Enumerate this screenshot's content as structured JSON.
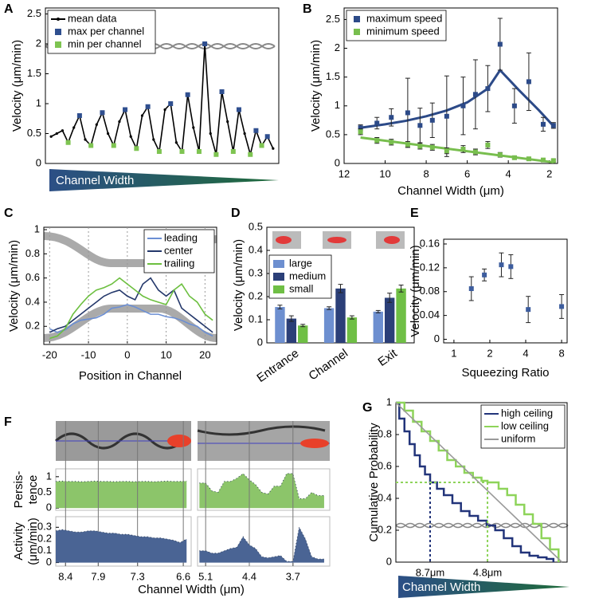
{
  "chart_data": [
    {
      "panel": "A",
      "type": "line",
      "ylabel": "Velocity (μm/min)",
      "footer": "Channel Width",
      "xlim": [
        0,
        41
      ],
      "ylim": [
        0,
        2.6
      ],
      "yticks": [
        0,
        0.5,
        1,
        1.5,
        2,
        2.5
      ],
      "legend": "upper left",
      "series": [
        {
          "name": "mean data",
          "color": "#000000",
          "marker": "dot",
          "x": [
            1,
            2,
            3,
            4,
            5,
            6,
            7,
            8,
            9,
            10,
            11,
            12,
            13,
            14,
            15,
            16,
            17,
            18,
            19,
            20,
            21,
            22,
            23,
            24,
            25,
            26,
            27,
            28,
            29,
            30,
            31,
            32,
            33,
            34,
            35,
            36,
            37,
            38,
            39,
            40
          ],
          "values": [
            0.45,
            0.5,
            0.55,
            0.35,
            0.6,
            0.8,
            0.4,
            0.3,
            0.65,
            0.85,
            0.5,
            0.3,
            0.7,
            0.9,
            0.45,
            0.25,
            0.8,
            0.95,
            0.4,
            0.2,
            0.9,
            1.0,
            0.35,
            0.2,
            1.15,
            0.6,
            0.2,
            2.0,
            0.5,
            0.15,
            1.2,
            0.7,
            0.2,
            0.9,
            0.5,
            0.15,
            0.55,
            0.3,
            0.45,
            0.25
          ]
        },
        {
          "name": "max per channel",
          "color": "#2f4f8f",
          "marker": "square",
          "line": false,
          "x": [
            6,
            10,
            14,
            18,
            22,
            25,
            28,
            31,
            34,
            37,
            39
          ],
          "values": [
            0.8,
            0.85,
            0.9,
            0.95,
            1.0,
            1.15,
            2.0,
            1.2,
            0.9,
            0.55,
            0.45
          ]
        },
        {
          "name": "min per channel",
          "color": "#7ec451",
          "marker": "square",
          "line": false,
          "x": [
            4,
            8,
            12,
            16,
            20,
            24,
            27,
            30,
            33,
            36,
            38
          ],
          "values": [
            0.35,
            0.3,
            0.3,
            0.25,
            0.2,
            0.2,
            0.2,
            0.15,
            0.2,
            0.15,
            0.3
          ]
        }
      ]
    },
    {
      "panel": "B",
      "type": "scatter",
      "xlabel": "Channel Width (μm)",
      "ylabel": "Velocity (μm/min)",
      "xlim": [
        12,
        1.6
      ],
      "xticks": [
        12,
        10,
        8,
        6,
        4,
        2
      ],
      "ylim": [
        0,
        2.7
      ],
      "yticks": [
        0,
        0.5,
        1,
        1.5,
        2,
        2.5
      ],
      "legend": "upper left",
      "series": [
        {
          "name": "maximum speed",
          "color": "#2c4a88",
          "x": [
            11.2,
            10.4,
            9.7,
            8.9,
            8.3,
            7.7,
            7.0,
            6.2,
            5.6,
            5.0,
            4.4,
            3.7,
            3.0,
            2.3,
            1.8
          ],
          "values": [
            0.62,
            0.7,
            0.8,
            0.88,
            0.66,
            0.75,
            0.82,
            1.0,
            1.2,
            1.3,
            2.07,
            1.0,
            1.42,
            0.68,
            0.66
          ],
          "errors": [
            0.05,
            0.1,
            0.15,
            0.6,
            0.3,
            0.3,
            0.7,
            0.5,
            0.6,
            0.4,
            0.45,
            0.3,
            0.5,
            0.12,
            0.05
          ],
          "fit_x": [
            11.2,
            10,
            9,
            8,
            7,
            6,
            5,
            4.4,
            3.5,
            2.5,
            1.8
          ],
          "fit_values": [
            0.62,
            0.68,
            0.74,
            0.82,
            0.92,
            1.06,
            1.3,
            1.62,
            1.28,
            0.92,
            0.65
          ]
        },
        {
          "name": "minimum speed",
          "color": "#78be4e",
          "x": [
            11.2,
            10.4,
            9.7,
            8.9,
            8.3,
            7.7,
            7.0,
            6.2,
            5.6,
            5.0,
            4.4,
            3.7,
            3.0,
            2.3,
            1.8
          ],
          "values": [
            0.55,
            0.4,
            0.37,
            0.33,
            0.3,
            0.28,
            0.22,
            0.25,
            0.2,
            0.32,
            0.15,
            0.1,
            0.08,
            0.06,
            0.05
          ],
          "errors": [
            0.05,
            0.05,
            0.05,
            0.05,
            0.05,
            0.05,
            0.05,
            0.06,
            0.05,
            0.06,
            0.04,
            0.03,
            0.03,
            0.02,
            0.02
          ],
          "fit_x": [
            11.2,
            1.8
          ],
          "fit_values": [
            0.45,
            0.02
          ]
        }
      ]
    },
    {
      "panel": "C",
      "type": "line",
      "xlabel": "Position in Channel",
      "ylabel": "Velocity (μm/min)",
      "xlim": [
        -21.5,
        23
      ],
      "xticks": [
        -20,
        -10,
        0,
        10,
        20
      ],
      "ylim": [
        0.05,
        1.02
      ],
      "yticks": [
        0.2,
        0.4,
        0.6,
        0.8,
        1
      ],
      "xgrid": true,
      "legend": "upper right",
      "x": [
        -20,
        -18,
        -16,
        -14,
        -12,
        -10,
        -8,
        -6,
        -4,
        -2,
        0,
        2,
        4,
        6,
        8,
        10,
        12,
        14,
        16,
        18,
        20,
        22
      ],
      "series": [
        {
          "name": "leading",
          "color": "#6b8fd4",
          "values": [
            0.18,
            0.15,
            0.17,
            0.22,
            0.25,
            0.26,
            0.27,
            0.3,
            0.35,
            0.36,
            0.38,
            0.36,
            0.33,
            0.3,
            0.3,
            0.28,
            0.27,
            0.25,
            0.22,
            0.2,
            0.15,
            0.12
          ]
        },
        {
          "name": "center",
          "color": "#24386b",
          "values": [
            0.15,
            0.18,
            0.2,
            0.25,
            0.3,
            0.35,
            0.4,
            0.45,
            0.48,
            0.5,
            0.45,
            0.42,
            0.55,
            0.6,
            0.5,
            0.45,
            0.5,
            0.35,
            0.3,
            0.25,
            0.2,
            0.15
          ]
        },
        {
          "name": "trailing",
          "color": "#6cbf3f",
          "values": [
            0.1,
            0.12,
            0.18,
            0.3,
            0.38,
            0.45,
            0.5,
            0.52,
            0.55,
            0.6,
            0.55,
            0.5,
            0.45,
            0.42,
            0.4,
            0.38,
            0.5,
            0.55,
            0.45,
            0.4,
            0.3,
            0.25
          ]
        }
      ]
    },
    {
      "panel": "D",
      "type": "bar",
      "ylabel": "Velocity (μm/min)",
      "categories": [
        "Entrance",
        "Channel",
        "Exit"
      ],
      "ylim": [
        0,
        0.5
      ],
      "yticks": [
        0,
        0.1,
        0.2,
        0.3,
        0.4,
        0.5
      ],
      "legend": "upper left",
      "series": [
        {
          "name": "large",
          "color": "#6d8fd0",
          "values": [
            0.155,
            0.15,
            0.135
          ],
          "errors": [
            0.008,
            0.006,
            0.005
          ]
        },
        {
          "name": "medium",
          "color": "#2b3f78",
          "values": [
            0.105,
            0.235,
            0.195
          ],
          "errors": [
            0.012,
            0.018,
            0.02
          ]
        },
        {
          "name": "small",
          "color": "#6fbf45",
          "values": [
            0.075,
            0.11,
            0.235
          ],
          "errors": [
            0.005,
            0.007,
            0.015
          ]
        }
      ]
    },
    {
      "panel": "E",
      "type": "scatter",
      "xlabel": "Squeezing Ratio",
      "ylabel": "Velocity (μm/min)",
      "xlog": true,
      "xlim": [
        0.82,
        8.9
      ],
      "xticks": [
        1,
        2,
        4,
        8
      ],
      "ylim": [
        -0.006,
        0.168
      ],
      "yticks": [
        0,
        0.04,
        0.08,
        0.12,
        0.16
      ],
      "series": [
        {
          "color": "#3d5d9e",
          "x": [
            1.4,
            1.8,
            2.5,
            3,
            4.2,
            8
          ],
          "values": [
            0.085,
            0.108,
            0.125,
            0.122,
            0.05,
            0.055
          ],
          "errors": [
            0.02,
            0.01,
            0.02,
            0.02,
            0.022,
            0.02
          ]
        }
      ]
    },
    {
      "panel": "F",
      "type": "area",
      "ylabel": [
        "Persis-",
        "tence"
      ],
      "xlim": [
        8.55,
        6.48
      ],
      "ylim": [
        -0.07,
        1.25
      ],
      "yticks": [
        0,
        0.5,
        1
      ],
      "series": [
        {
          "color": "#8cc56a",
          "x": [
            8.55,
            8.45,
            8.35,
            8.25,
            8.15,
            8.05,
            7.95,
            7.85,
            7.75,
            7.65,
            7.55,
            7.45,
            7.35,
            7.25,
            7.15,
            7.05,
            6.95,
            6.85,
            6.75,
            6.65,
            6.55
          ],
          "values": [
            0.85,
            0.86,
            0.85,
            0.85,
            0.84,
            0.85,
            0.86,
            0.85,
            0.85,
            0.84,
            0.85,
            0.85,
            0.84,
            0.85,
            0.85,
            0.84,
            0.85,
            0.86,
            0.85,
            0.85,
            0.86
          ]
        }
      ]
    },
    {
      "type": "area",
      "ylabel": [
        "Activity",
        "(μm/min)"
      ],
      "xlabel": "Channel Width (μm)",
      "xlim": [
        8.55,
        6.48
      ],
      "xticks": [
        8.4,
        7.9,
        7.3,
        6.6
      ],
      "xgrid": true,
      "ylim": [
        -0.03,
        0.39
      ],
      "yticks": [
        0,
        0.1,
        0.2,
        0.3
      ],
      "series": [
        {
          "color": "#4a6494",
          "x": [
            8.55,
            8.45,
            8.35,
            8.25,
            8.15,
            8.05,
            7.95,
            7.85,
            7.75,
            7.65,
            7.55,
            7.45,
            7.35,
            7.25,
            7.15,
            7.05,
            6.95,
            6.85,
            6.75,
            6.65,
            6.55
          ],
          "values": [
            0.27,
            0.28,
            0.27,
            0.26,
            0.26,
            0.27,
            0.27,
            0.26,
            0.25,
            0.25,
            0.24,
            0.24,
            0.23,
            0.22,
            0.22,
            0.21,
            0.21,
            0.2,
            0.19,
            0.17,
            0.2
          ]
        }
      ]
    },
    {
      "type": "area",
      "xlim": [
        5.23,
        3.11
      ],
      "ylim": [
        -0.07,
        1.25
      ],
      "series": [
        {
          "color": "#8cc56a",
          "x": [
            5.2,
            5.1,
            5.0,
            4.9,
            4.8,
            4.7,
            4.6,
            4.5,
            4.4,
            4.3,
            4.2,
            4.1,
            4.0,
            3.9,
            3.8,
            3.7,
            3.6,
            3.5,
            3.4,
            3.3,
            3.2
          ],
          "values": [
            0.8,
            0.8,
            0.55,
            0.5,
            0.85,
            0.85,
            0.95,
            1.1,
            0.9,
            0.75,
            0.5,
            0.45,
            0.7,
            0.7,
            1.1,
            1.1,
            0.3,
            0.3,
            0.5,
            0.4,
            0.4
          ]
        }
      ]
    },
    {
      "type": "area",
      "xlim": [
        5.23,
        3.11
      ],
      "xticks": [
        5.1,
        4.4,
        3.7
      ],
      "xgrid": true,
      "ylim": [
        -0.03,
        0.39
      ],
      "series": [
        {
          "color": "#4a6494",
          "x": [
            5.2,
            5.1,
            5.0,
            4.9,
            4.8,
            4.7,
            4.6,
            4.5,
            4.4,
            4.3,
            4.2,
            4.1,
            4.0,
            3.9,
            3.8,
            3.7,
            3.6,
            3.5,
            3.4,
            3.3,
            3.2
          ],
          "values": [
            0.1,
            0.1,
            0.08,
            0.08,
            0.1,
            0.12,
            0.13,
            0.22,
            0.15,
            0.12,
            0.05,
            0.04,
            0.05,
            0.06,
            0.01,
            0.01,
            0.3,
            0.2,
            0.05,
            0.03,
            0.03
          ]
        }
      ]
    },
    {
      "panel": "G",
      "type": "line",
      "ylabel": "Cumulative Probability",
      "footer": "Channel Width",
      "xlim": [
        0,
        1
      ],
      "xticks": [
        {
          "value": 0.2,
          "label": "8.7μm"
        },
        {
          "value": 0.535,
          "label": "4.8μm"
        }
      ],
      "ylim": [
        0,
        1
      ],
      "yticks": [
        0,
        0.2,
        0.4,
        0.6,
        0.8,
        1
      ],
      "legend": "upper right",
      "reference_y": 0.5,
      "series": [
        {
          "name": "high ceiling",
          "color": "#22347a",
          "step": true,
          "median_x": 0.2,
          "x": [
            0,
            0.02,
            0.05,
            0.08,
            0.11,
            0.14,
            0.17,
            0.2,
            0.24,
            0.28,
            0.33,
            0.38,
            0.43,
            0.48,
            0.53,
            0.58,
            0.63,
            0.68,
            0.73,
            0.78,
            0.83,
            0.88,
            0.92
          ],
          "values": [
            1,
            0.9,
            0.82,
            0.74,
            0.67,
            0.6,
            0.55,
            0.5,
            0.46,
            0.42,
            0.37,
            0.32,
            0.29,
            0.26,
            0.23,
            0.2,
            0.15,
            0.1,
            0.06,
            0.04,
            0.03,
            0.02,
            0
          ]
        },
        {
          "name": "low ceiling",
          "color": "#8ed45a",
          "step": true,
          "median_x": 0.535,
          "x": [
            0,
            0.05,
            0.1,
            0.15,
            0.2,
            0.25,
            0.3,
            0.35,
            0.4,
            0.45,
            0.5,
            0.535,
            0.6,
            0.65,
            0.7,
            0.75,
            0.8,
            0.85,
            0.9,
            0.95
          ],
          "values": [
            1,
            0.95,
            0.88,
            0.82,
            0.76,
            0.7,
            0.64,
            0.6,
            0.56,
            0.53,
            0.51,
            0.5,
            0.46,
            0.42,
            0.36,
            0.3,
            0.24,
            0.15,
            0.08,
            0
          ]
        },
        {
          "name": "uniform",
          "color": "#999999",
          "x": [
            0,
            0.97
          ],
          "values": [
            1,
            0
          ]
        }
      ]
    }
  ]
}
